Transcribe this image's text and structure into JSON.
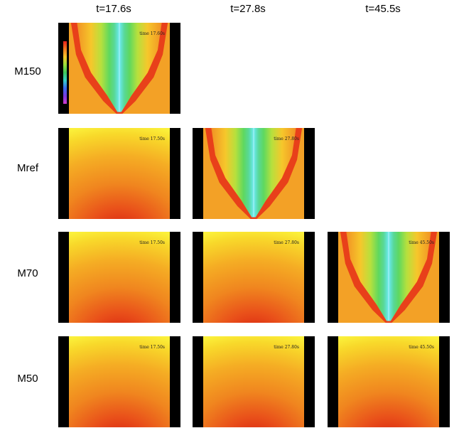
{
  "columns": [
    "t=17.6s",
    "t=27.8s",
    "t=45.5s"
  ],
  "rows": [
    {
      "label": "M150",
      "panels": [
        {
          "state": "hot",
          "time_text": "time  17.60s",
          "colorbar": true
        }
      ]
    },
    {
      "label": "Mref",
      "panels": [
        {
          "state": "cool",
          "time_text": "time  17.50s",
          "colorbar": false
        },
        {
          "state": "hot",
          "time_text": "time  27.80s",
          "colorbar": false
        }
      ]
    },
    {
      "label": "M70",
      "panels": [
        {
          "state": "cool",
          "time_text": "time  17.50s",
          "colorbar": false
        },
        {
          "state": "cool",
          "time_text": "time  27.80s",
          "colorbar": false
        },
        {
          "state": "hot",
          "time_text": "time  45.50s",
          "colorbar": false
        }
      ]
    },
    {
      "label": "M50",
      "panels": [
        {
          "state": "cool",
          "time_text": "time  17.50s",
          "colorbar": false
        },
        {
          "state": "cool",
          "time_text": "time  27.80s",
          "colorbar": false
        },
        {
          "state": "cool",
          "time_text": "time  45.50s",
          "colorbar": false
        }
      ]
    }
  ]
}
